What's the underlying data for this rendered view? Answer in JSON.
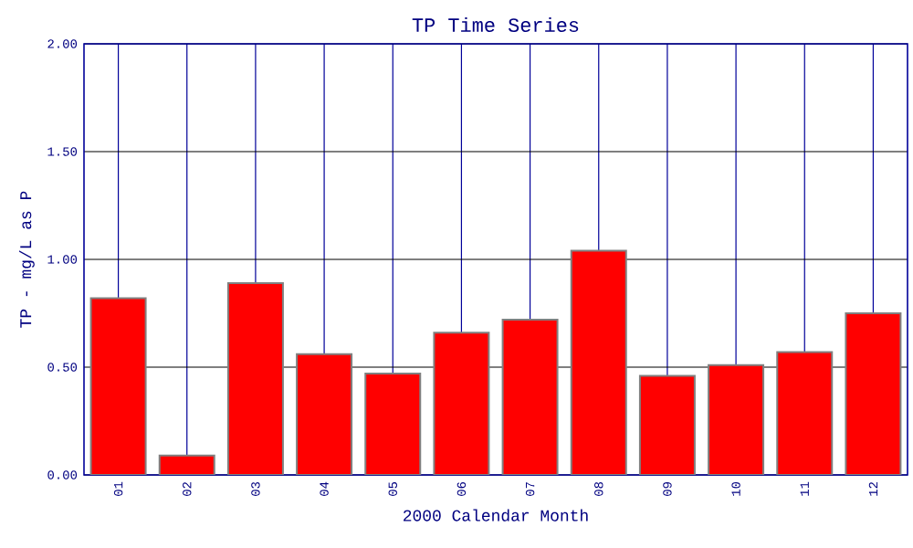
{
  "chart_data": {
    "type": "bar",
    "title": "TP Time Series",
    "xlabel": "2000 Calendar Month",
    "ylabel": "TP - mg/L as P",
    "categories": [
      "01",
      "02",
      "03",
      "04",
      "05",
      "06",
      "07",
      "08",
      "09",
      "10",
      "11",
      "12"
    ],
    "values": [
      0.82,
      0.09,
      0.89,
      0.56,
      0.47,
      0.66,
      0.72,
      1.04,
      0.46,
      0.51,
      0.57,
      0.75
    ],
    "color": "#ff0000",
    "ylim": [
      0,
      2
    ],
    "yticks": [
      {
        "value": 0,
        "label": "0.00"
      },
      {
        "value": 0.5,
        "label": "0.50"
      },
      {
        "value": 1,
        "label": "1.00"
      },
      {
        "value": 1.5,
        "label": "1.50"
      },
      {
        "value": 2,
        "label": "2.00"
      }
    ],
    "grid": true
  }
}
